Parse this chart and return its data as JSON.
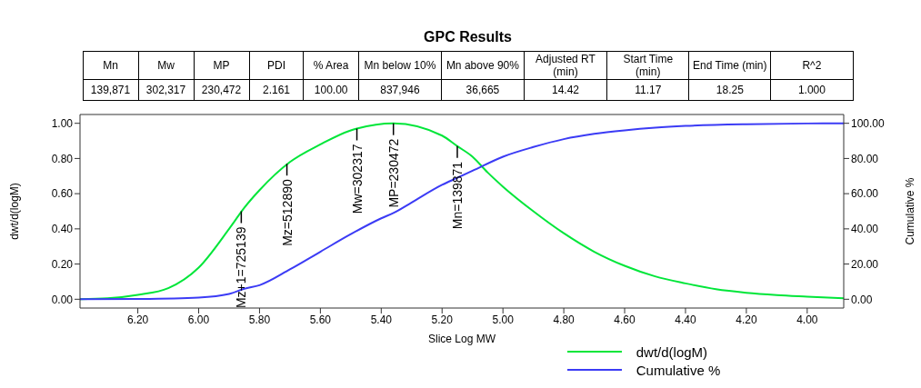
{
  "chart_data": [
    {
      "type": "other",
      "title": "GPC Results",
      "categories": [
        "Mn",
        "Mw",
        "MP",
        "PDI",
        "% Area",
        "Mn below 10%",
        "Mn above 90%",
        "Adjusted RT (min)",
        "Start Time (min)",
        "End Time (min)",
        "R^2"
      ],
      "cell_labels": [
        [
          "139,871",
          "302,317",
          "230,472",
          "2.161",
          "100.00",
          "837,946",
          "36,665",
          "14.42",
          "11.17",
          "18.25",
          "1.000"
        ]
      ]
    },
    {
      "type": "line",
      "xlabel": "Slice Log MW",
      "ylabel": "dwt/d(logM)",
      "y2label": "Cumulative %",
      "xlim": [
        6.39,
        3.88
      ],
      "xticks": [
        {
          "value": 6.2,
          "label": "6.20"
        },
        {
          "value": 6.0,
          "label": "6.00"
        },
        {
          "value": 5.8,
          "label": "5.80"
        },
        {
          "value": 5.6,
          "label": "5.60"
        },
        {
          "value": 5.4,
          "label": "5.40"
        },
        {
          "value": 5.2,
          "label": "5.20"
        },
        {
          "value": 5.0,
          "label": "5.00"
        },
        {
          "value": 4.8,
          "label": "4.80"
        },
        {
          "value": 4.6,
          "label": "4.60"
        },
        {
          "value": 4.4,
          "label": "4.40"
        },
        {
          "value": 4.2,
          "label": "4.20"
        },
        {
          "value": 4.0,
          "label": "4.00"
        }
      ],
      "ylim": [
        -0.05,
        1.05
      ],
      "yticks": [
        {
          "value": 0,
          "label": "0.00"
        },
        {
          "value": 0.2,
          "label": "0.20"
        },
        {
          "value": 0.4,
          "label": "0.40"
        },
        {
          "value": 0.6,
          "label": "0.60"
        },
        {
          "value": 0.8,
          "label": "0.80"
        },
        {
          "value": 1,
          "label": "1.00"
        }
      ],
      "y2lim": [
        -5,
        105
      ],
      "y2ticks": [
        {
          "value": 0,
          "label": "0.00"
        },
        {
          "value": 20,
          "label": "20.00"
        },
        {
          "value": 40,
          "label": "40.00"
        },
        {
          "value": 60,
          "label": "60.00"
        },
        {
          "value": 80,
          "label": "80.00"
        },
        {
          "value": 100,
          "label": "100.00"
        }
      ],
      "legend": "bottom",
      "marker": "none",
      "line_style": "solid",
      "series": [
        {
          "name": "dwt/d(logM)",
          "color": "#00e639",
          "x": [
            6.39,
            6.3,
            6.2,
            6.1,
            6.0,
            5.9,
            5.85,
            5.8,
            5.7,
            5.6,
            5.5,
            5.48,
            5.36,
            5.2,
            5.15,
            5.1,
            5.05,
            5.0,
            4.9,
            4.8,
            4.7,
            4.6,
            4.5,
            4.4,
            4.3,
            4.2,
            4.1,
            4.0,
            3.88
          ],
          "values": [
            0,
            0.005,
            0.025,
            0.063,
            0.18,
            0.4,
            0.52,
            0.62,
            0.78,
            0.88,
            0.96,
            0.97,
            1.0,
            0.93,
            0.87,
            0.81,
            0.72,
            0.64,
            0.5,
            0.375,
            0.27,
            0.19,
            0.13,
            0.09,
            0.057,
            0.037,
            0.024,
            0.015,
            0.005
          ]
        },
        {
          "name": "Cumulative %",
          "color": "#3b3bf5",
          "axis": "y2",
          "x": [
            6.39,
            6.2,
            6.0,
            5.9,
            5.85,
            5.8,
            5.7,
            5.6,
            5.5,
            5.4,
            5.36,
            5.3,
            5.2,
            5.15,
            5.1,
            5.0,
            4.9,
            4.8,
            4.7,
            4.6,
            4.5,
            4.4,
            4.2,
            4.0,
            3.88
          ],
          "values": [
            0,
            0.2,
            1,
            3,
            6,
            8,
            17,
            27,
            37,
            46,
            49,
            55,
            65,
            69,
            73,
            81,
            86.5,
            91,
            94,
            96,
            97.5,
            98.5,
            99.5,
            99.9,
            100
          ]
        }
      ],
      "annotations": [
        {
          "text": "Mz+1=725139",
          "x": 5.86,
          "y": 0.5
        },
        {
          "text": "Mz=512890",
          "x": 5.71,
          "y": 0.77
        },
        {
          "text": "Mw=302317",
          "x": 5.48,
          "y": 0.97
        },
        {
          "text": "MP=230472",
          "x": 5.36,
          "y": 1.0
        },
        {
          "text": "Mn=139871",
          "x": 5.15,
          "y": 0.87
        }
      ]
    }
  ]
}
